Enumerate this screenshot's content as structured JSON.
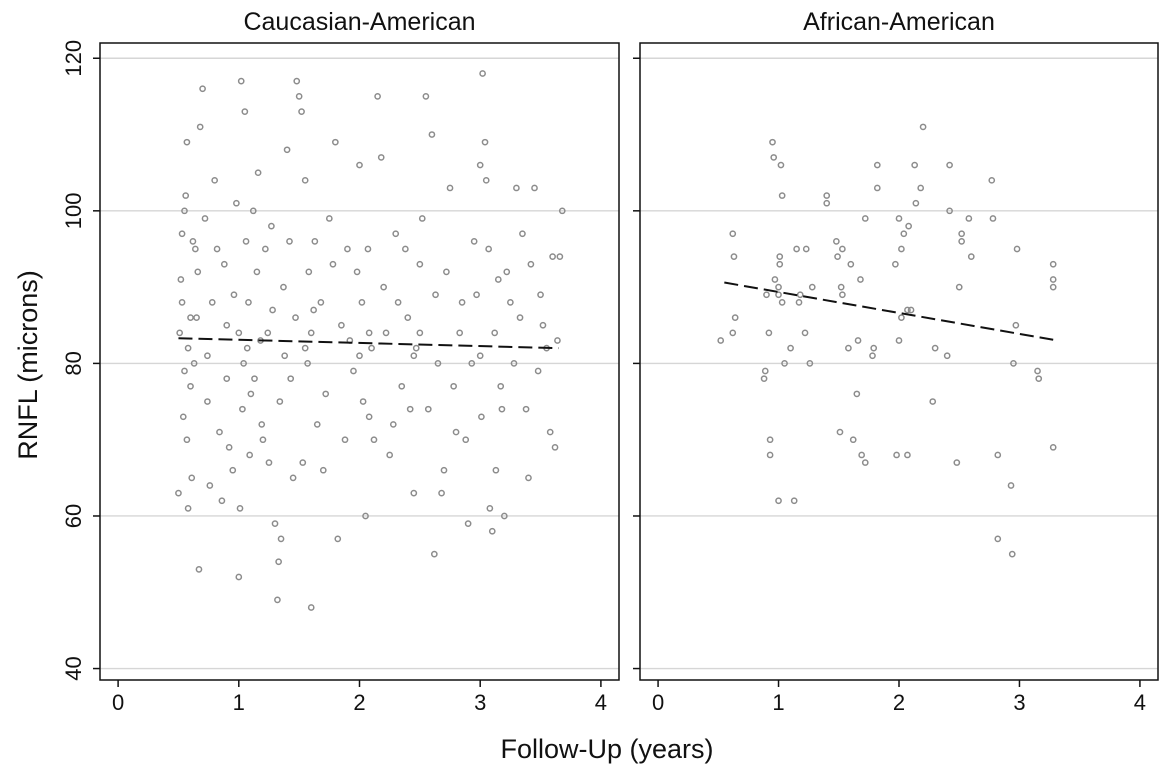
{
  "figure": {
    "ylabel": "RNFL (microns)",
    "xlabel": "Follow-Up (years)"
  },
  "chart_data": [
    {
      "type": "scatter",
      "title": "Caucasian-American",
      "xlabel": "Follow-Up (years)",
      "ylabel": "RNFL (microns)",
      "xlim": [
        -0.15,
        4.15
      ],
      "ylim": [
        38.5,
        122
      ],
      "xticks": [
        0,
        1,
        2,
        3,
        4
      ],
      "yticks": [
        40,
        60,
        80,
        100,
        120
      ],
      "grid": "horizontal",
      "marker_color": "#8c8c8c",
      "fit_line": {
        "style": "dashed",
        "color": "#111111",
        "x": [
          0.5,
          3.65
        ],
        "y": [
          83.3,
          82.0
        ]
      },
      "series": [
        {
          "points": [
            [
              0.5,
              63
            ],
            [
              0.51,
              84
            ],
            [
              0.52,
              91
            ],
            [
              0.53,
              97
            ],
            [
              0.54,
              73
            ],
            [
              0.55,
              100
            ],
            [
              0.56,
              102
            ],
            [
              0.57,
              109
            ],
            [
              0.58,
              61
            ],
            [
              0.6,
              77
            ],
            [
              0.61,
              65
            ],
            [
              0.63,
              80
            ],
            [
              0.64,
              95
            ],
            [
              0.66,
              92
            ],
            [
              0.68,
              111
            ],
            [
              0.7,
              116
            ],
            [
              0.72,
              99
            ],
            [
              0.74,
              81
            ],
            [
              0.76,
              64
            ],
            [
              0.78,
              88
            ],
            [
              0.8,
              104
            ],
            [
              0.82,
              95
            ],
            [
              0.84,
              71
            ],
            [
              0.86,
              62
            ],
            [
              0.88,
              93
            ],
            [
              0.9,
              85
            ],
            [
              0.67,
              53
            ],
            [
              0.95,
              66
            ],
            [
              1.0,
              52
            ],
            [
              1.02,
              117
            ],
            [
              1.05,
              113
            ],
            [
              1.08,
              88
            ],
            [
              1.1,
              76
            ],
            [
              1.12,
              100
            ],
            [
              1.15,
              92
            ],
            [
              1.18,
              83
            ],
            [
              1.2,
              70
            ],
            [
              1.22,
              95
            ],
            [
              1.25,
              67
            ],
            [
              1.28,
              87
            ],
            [
              1.3,
              59
            ],
            [
              1.32,
              49
            ],
            [
              1.33,
              54
            ],
            [
              1.35,
              57
            ],
            [
              1.38,
              81
            ],
            [
              1.4,
              108
            ],
            [
              1.42,
              96
            ],
            [
              1.45,
              65
            ],
            [
              1.48,
              117
            ],
            [
              1.5,
              115
            ],
            [
              1.52,
              113
            ],
            [
              1.55,
              104
            ],
            [
              1.58,
              92
            ],
            [
              1.6,
              48
            ],
            [
              1.62,
              87
            ],
            [
              1.65,
              72
            ],
            [
              1.7,
              66
            ],
            [
              1.75,
              99
            ],
            [
              1.8,
              109
            ],
            [
              1.82,
              57
            ],
            [
              1.85,
              85
            ],
            [
              1.9,
              95
            ],
            [
              1.95,
              79
            ],
            [
              2.0,
              106
            ],
            [
              2.02,
              88
            ],
            [
              2.05,
              60
            ],
            [
              2.08,
              73
            ],
            [
              2.1,
              82
            ],
            [
              2.15,
              115
            ],
            [
              2.18,
              107
            ],
            [
              2.2,
              90
            ],
            [
              2.25,
              68
            ],
            [
              2.3,
              97
            ],
            [
              2.35,
              77
            ],
            [
              2.4,
              86
            ],
            [
              2.45,
              63
            ],
            [
              2.5,
              93
            ],
            [
              2.55,
              115
            ],
            [
              2.6,
              110
            ],
            [
              2.62,
              55
            ],
            [
              2.65,
              80
            ],
            [
              2.7,
              66
            ],
            [
              2.75,
              103
            ],
            [
              2.8,
              71
            ],
            [
              2.85,
              88
            ],
            [
              2.9,
              59
            ],
            [
              2.95,
              96
            ],
            [
              3.0,
              106
            ],
            [
              3.02,
              118
            ],
            [
              3.04,
              109
            ],
            [
              3.05,
              104
            ],
            [
              3.08,
              61
            ],
            [
              3.1,
              58
            ],
            [
              3.12,
              84
            ],
            [
              3.15,
              91
            ],
            [
              3.18,
              74
            ],
            [
              3.2,
              60
            ],
            [
              3.25,
              88
            ],
            [
              3.3,
              103
            ],
            [
              3.35,
              97
            ],
            [
              3.4,
              65
            ],
            [
              3.45,
              103
            ],
            [
              3.5,
              89
            ],
            [
              3.55,
              82
            ],
            [
              3.58,
              71
            ],
            [
              3.6,
              94
            ],
            [
              3.62,
              69
            ],
            [
              3.64,
              83
            ],
            [
              3.66,
              94
            ],
            [
              3.68,
              100
            ],
            [
              0.53,
              88
            ],
            [
              0.55,
              79
            ],
            [
              0.57,
              70
            ],
            [
              0.62,
              96
            ],
            [
              0.65,
              86
            ],
            [
              0.74,
              75
            ],
            [
              0.9,
              78
            ],
            [
              0.92,
              69
            ],
            [
              0.96,
              89
            ],
            [
              0.98,
              101
            ],
            [
              1.01,
              61
            ],
            [
              1.03,
              74
            ],
            [
              1.06,
              96
            ],
            [
              1.09,
              68
            ],
            [
              1.13,
              78
            ],
            [
              1.16,
              105
            ],
            [
              1.19,
              72
            ],
            [
              1.24,
              84
            ],
            [
              1.27,
              98
            ],
            [
              1.34,
              75
            ],
            [
              1.37,
              90
            ],
            [
              1.43,
              78
            ],
            [
              1.47,
              86
            ],
            [
              1.53,
              67
            ],
            [
              1.57,
              80
            ],
            [
              1.63,
              96
            ],
            [
              1.68,
              88
            ],
            [
              1.72,
              76
            ],
            [
              1.78,
              93
            ],
            [
              1.88,
              70
            ],
            [
              1.92,
              83
            ],
            [
              1.98,
              92
            ],
            [
              2.03,
              75
            ],
            [
              2.07,
              95
            ],
            [
              2.12,
              70
            ],
            [
              2.22,
              84
            ],
            [
              2.28,
              72
            ],
            [
              2.32,
              88
            ],
            [
              2.38,
              95
            ],
            [
              2.42,
              74
            ],
            [
              2.47,
              82
            ],
            [
              2.52,
              99
            ],
            [
              2.57,
              74
            ],
            [
              2.63,
              89
            ],
            [
              2.68,
              63
            ],
            [
              2.72,
              92
            ],
            [
              2.78,
              77
            ],
            [
              2.83,
              84
            ],
            [
              2.88,
              70
            ],
            [
              2.93,
              80
            ],
            [
              2.97,
              89
            ],
            [
              3.01,
              73
            ],
            [
              3.07,
              95
            ],
            [
              3.13,
              66
            ],
            [
              3.17,
              77
            ],
            [
              3.22,
              92
            ],
            [
              3.28,
              80
            ],
            [
              3.33,
              86
            ],
            [
              3.38,
              74
            ],
            [
              3.42,
              93
            ],
            [
              3.48,
              79
            ],
            [
              3.52,
              85
            ],
            [
              1.0,
              84
            ],
            [
              1.04,
              80
            ],
            [
              1.07,
              82
            ],
            [
              0.58,
              82
            ],
            [
              0.6,
              86
            ],
            [
              1.55,
              82
            ],
            [
              1.6,
              84
            ],
            [
              2.0,
              81
            ],
            [
              2.08,
              84
            ],
            [
              2.45,
              81
            ],
            [
              2.5,
              84
            ],
            [
              3.0,
              81
            ]
          ]
        }
      ]
    },
    {
      "type": "scatter",
      "title": "African-American",
      "xlabel": "Follow-Up (years)",
      "ylabel": "RNFL (microns)",
      "xlim": [
        -0.15,
        4.15
      ],
      "ylim": [
        38.5,
        122
      ],
      "xticks": [
        0,
        1,
        2,
        3,
        4
      ],
      "yticks": [
        40,
        60,
        80,
        100,
        120
      ],
      "grid": "horizontal",
      "marker_color": "#8c8c8c",
      "fit_line": {
        "style": "dashed",
        "color": "#111111",
        "x": [
          0.55,
          3.28
        ],
        "y": [
          90.6,
          83.1
        ]
      },
      "series": [
        {
          "points": [
            [
              0.52,
              83
            ],
            [
              0.62,
              84
            ],
            [
              0.62,
              97
            ],
            [
              0.63,
              94
            ],
            [
              0.64,
              86
            ],
            [
              0.88,
              78
            ],
            [
              0.89,
              79
            ],
            [
              0.9,
              89
            ],
            [
              0.92,
              84
            ],
            [
              0.93,
              70
            ],
            [
              0.93,
              68
            ],
            [
              0.95,
              109
            ],
            [
              0.96,
              107
            ],
            [
              0.97,
              91
            ],
            [
              1.0,
              62
            ],
            [
              1.0,
              90
            ],
            [
              1.0,
              89
            ],
            [
              1.01,
              93
            ],
            [
              1.01,
              94
            ],
            [
              1.02,
              106
            ],
            [
              1.03,
              102
            ],
            [
              1.03,
              88
            ],
            [
              1.05,
              80
            ],
            [
              1.1,
              82
            ],
            [
              1.13,
              62
            ],
            [
              1.15,
              95
            ],
            [
              1.17,
              88
            ],
            [
              1.18,
              89
            ],
            [
              1.22,
              84
            ],
            [
              1.23,
              95
            ],
            [
              1.26,
              80
            ],
            [
              1.28,
              90
            ],
            [
              1.4,
              101
            ],
            [
              1.4,
              102
            ],
            [
              1.48,
              96
            ],
            [
              1.49,
              94
            ],
            [
              1.51,
              71
            ],
            [
              1.52,
              90
            ],
            [
              1.53,
              95
            ],
            [
              1.53,
              89
            ],
            [
              1.58,
              82
            ],
            [
              1.6,
              93
            ],
            [
              1.62,
              70
            ],
            [
              1.65,
              76
            ],
            [
              1.66,
              83
            ],
            [
              1.68,
              91
            ],
            [
              1.69,
              68
            ],
            [
              1.72,
              67
            ],
            [
              1.72,
              99
            ],
            [
              1.78,
              81
            ],
            [
              1.79,
              82
            ],
            [
              1.82,
              106
            ],
            [
              1.82,
              103
            ],
            [
              1.97,
              93
            ],
            [
              1.98,
              68
            ],
            [
              2.0,
              83
            ],
            [
              2.0,
              99
            ],
            [
              2.02,
              95
            ],
            [
              2.02,
              86
            ],
            [
              2.04,
              97
            ],
            [
              2.07,
              68
            ],
            [
              2.07,
              87
            ],
            [
              2.08,
              98
            ],
            [
              2.1,
              87
            ],
            [
              2.13,
              106
            ],
            [
              2.14,
              101
            ],
            [
              2.18,
              103
            ],
            [
              2.2,
              111
            ],
            [
              2.28,
              75
            ],
            [
              2.3,
              82
            ],
            [
              2.4,
              81
            ],
            [
              2.42,
              100
            ],
            [
              2.42,
              106
            ],
            [
              2.48,
              67
            ],
            [
              2.5,
              90
            ],
            [
              2.52,
              96
            ],
            [
              2.52,
              97
            ],
            [
              2.58,
              99
            ],
            [
              2.6,
              94
            ],
            [
              2.77,
              104
            ],
            [
              2.78,
              99
            ],
            [
              2.82,
              68
            ],
            [
              2.82,
              57
            ],
            [
              2.93,
              64
            ],
            [
              2.94,
              55
            ],
            [
              2.95,
              80
            ],
            [
              2.97,
              85
            ],
            [
              2.98,
              95
            ],
            [
              3.15,
              79
            ],
            [
              3.16,
              78
            ],
            [
              3.28,
              69
            ],
            [
              3.28,
              93
            ],
            [
              3.28,
              91
            ],
            [
              3.28,
              90
            ]
          ]
        }
      ]
    }
  ]
}
